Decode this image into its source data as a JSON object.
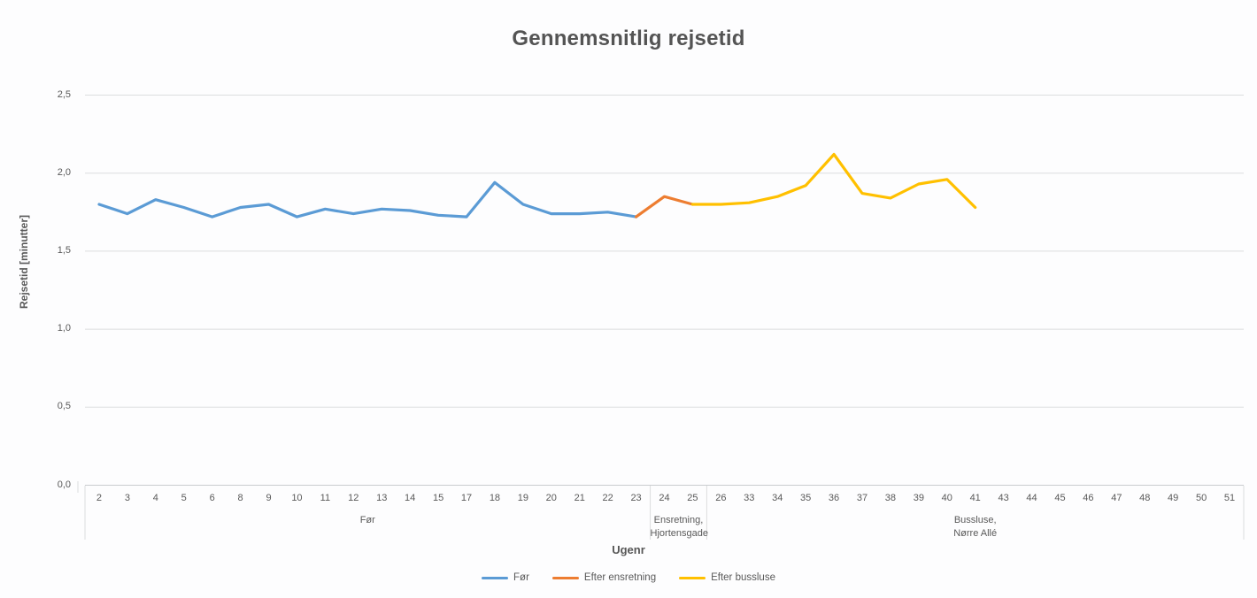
{
  "chart": {
    "title": "Gennemsnitlig rejsetid",
    "x_axis_title": "Ugenr",
    "y_axis_title": "Rejsetid [minutter]"
  },
  "colors": {
    "series_for": "#5B9BD5",
    "series_efter_ensretning": "#ED7D31",
    "series_efter_bussluse": "#FFC000",
    "grid": "#DCDDDF",
    "axis_line": "#C9CCCF",
    "text": "#595959"
  },
  "chart_data": {
    "type": "line",
    "title": "Gennemsnitlig rejsetid",
    "xlabel": "Ugenr",
    "ylabel": "Rejsetid [minutter]",
    "ylim": [
      0,
      2.5
    ],
    "ytick_step": 0.5,
    "ytick_labels_top_to_bottom": [
      "2,5",
      "2,0",
      "1,5",
      "1,0",
      "0,5",
      "0,0"
    ],
    "grid": true,
    "legend_position": "bottom",
    "category_groups": [
      {
        "label_lines": [
          "Før"
        ],
        "categories": [
          "2",
          "3",
          "4",
          "5",
          "6",
          "8",
          "9",
          "10",
          "11",
          "12",
          "13",
          "14",
          "15",
          "17",
          "18",
          "19",
          "20",
          "21",
          "22",
          "23"
        ]
      },
      {
        "label_lines": [
          "Ensretning,",
          "Hjortensgade"
        ],
        "categories": [
          "24",
          "25"
        ]
      },
      {
        "label_lines": [
          "Bussluse,",
          "Nørre Allé"
        ],
        "categories": [
          "26",
          "33",
          "34",
          "35",
          "36",
          "37",
          "38",
          "39",
          "40",
          "41",
          "43",
          "44",
          "45",
          "46",
          "47",
          "48",
          "49",
          "50",
          "51"
        ]
      }
    ],
    "series": [
      {
        "name": "Før",
        "color": "#5B9BD5",
        "data": [
          [
            "2",
            1.8
          ],
          [
            "3",
            1.74
          ],
          [
            "4",
            1.83
          ],
          [
            "5",
            1.78
          ],
          [
            "6",
            1.72
          ],
          [
            "8",
            1.78
          ],
          [
            "9",
            1.8
          ],
          [
            "10",
            1.72
          ],
          [
            "11",
            1.77
          ],
          [
            "12",
            1.74
          ],
          [
            "13",
            1.77
          ],
          [
            "14",
            1.76
          ],
          [
            "15",
            1.73
          ],
          [
            "17",
            1.72
          ],
          [
            "18",
            1.94
          ],
          [
            "19",
            1.8
          ],
          [
            "20",
            1.74
          ],
          [
            "21",
            1.74
          ],
          [
            "22",
            1.75
          ],
          [
            "23",
            1.72
          ]
        ]
      },
      {
        "name": "Efter ensretning",
        "color": "#ED7D31",
        "data": [
          [
            "23",
            1.72
          ],
          [
            "24",
            1.85
          ],
          [
            "25",
            1.8
          ]
        ]
      },
      {
        "name": "Efter bussluse",
        "color": "#FFC000",
        "data": [
          [
            "25",
            1.8
          ],
          [
            "26",
            1.8
          ],
          [
            "33",
            1.81
          ],
          [
            "34",
            1.85
          ],
          [
            "35",
            1.92
          ],
          [
            "36",
            2.12
          ],
          [
            "37",
            1.87
          ],
          [
            "38",
            1.84
          ],
          [
            "39",
            1.93
          ],
          [
            "40",
            1.96
          ],
          [
            "41",
            1.78
          ]
        ]
      }
    ]
  }
}
